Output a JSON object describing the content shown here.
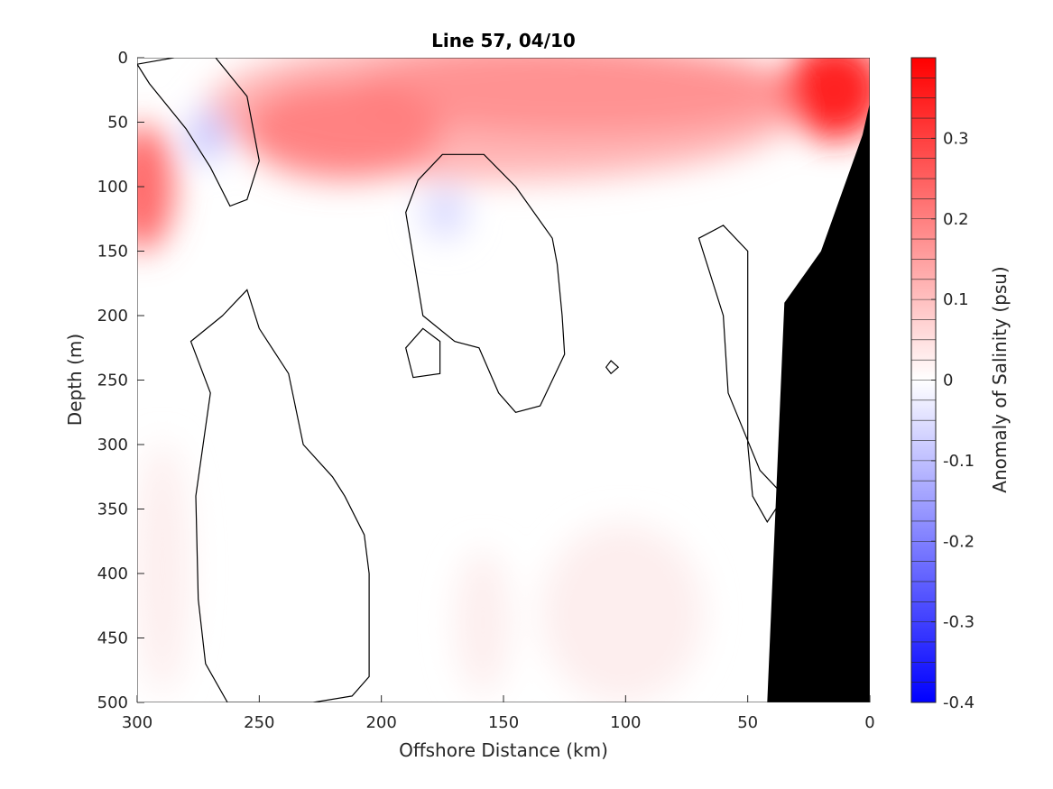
{
  "chart_data": {
    "type": "heatmap",
    "title": "Line 57, 04/10",
    "xlabel": "Offshore Distance (km)",
    "ylabel": "Depth (m)",
    "xlim": [
      300,
      0
    ],
    "ylim": [
      500,
      0
    ],
    "x_reversed": true,
    "y_reversed": true,
    "x_ticks": [
      "300",
      "250",
      "200",
      "150",
      "100",
      "50",
      "0"
    ],
    "y_ticks": [
      "0",
      "50",
      "100",
      "150",
      "200",
      "250",
      "300",
      "350",
      "400",
      "450",
      "500"
    ],
    "colorbar": {
      "label": "Anomaly of Salinity (psu)",
      "range": [
        -0.4,
        0.4
      ],
      "tick_values": [
        -0.4,
        -0.3,
        -0.2,
        -0.1,
        0,
        0.1,
        0.2,
        0.3
      ],
      "tick_labels": [
        "-0.4",
        "-0.3",
        "-0.2",
        "-0.1",
        "0",
        "0.1",
        "0.2",
        "0.3"
      ],
      "negative_color": "#0000ff",
      "positive_color": "#ff0000",
      "levels": 32
    },
    "features": [
      {
        "name": "salinity maximum near coast",
        "x": 12,
        "y": 15,
        "value": 0.38
      },
      {
        "name": "subsurface maximum offshore",
        "x": 298,
        "y": 100,
        "value": 0.3
      },
      {
        "name": "core near 215 km",
        "x": 215,
        "y": 60,
        "value": 0.22
      },
      {
        "name": "weak negative anomaly",
        "x": 270,
        "y": 55,
        "value": -0.06
      },
      {
        "name": "weak negative anomaly",
        "x": 175,
        "y": 120,
        "value": -0.03
      }
    ],
    "zero_contours": [
      [
        [
          270,
          -5
        ],
        [
          255,
          30
        ],
        [
          250,
          80
        ],
        [
          255,
          110
        ],
        [
          262,
          115
        ],
        [
          270,
          85
        ],
        [
          280,
          55
        ],
        [
          295,
          20
        ],
        [
          300,
          5
        ]
      ],
      [
        [
          185,
          95
        ],
        [
          175,
          75
        ],
        [
          158,
          75
        ],
        [
          145,
          100
        ],
        [
          130,
          140
        ],
        [
          128,
          160
        ],
        [
          126,
          200
        ],
        [
          125,
          230
        ],
        [
          135,
          270
        ],
        [
          145,
          275
        ],
        [
          152,
          260
        ],
        [
          160,
          225
        ],
        [
          170,
          220
        ],
        [
          183,
          200
        ],
        [
          190,
          120
        ]
      ],
      [
        [
          265,
          200
        ],
        [
          255,
          180
        ],
        [
          250,
          210
        ],
        [
          238,
          245
        ],
        [
          232,
          300
        ],
        [
          220,
          325
        ],
        [
          215,
          340
        ],
        [
          207,
          370
        ],
        [
          205,
          400
        ],
        [
          205,
          480
        ],
        [
          212,
          495
        ],
        [
          228,
          500
        ],
        [
          263,
          500
        ],
        [
          272,
          470
        ],
        [
          275,
          420
        ],
        [
          276,
          340
        ],
        [
          270,
          260
        ],
        [
          278,
          220
        ]
      ],
      [
        [
          70,
          140
        ],
        [
          60,
          130
        ],
        [
          50,
          150
        ],
        [
          50,
          300
        ],
        [
          48,
          340
        ],
        [
          42,
          360
        ],
        [
          35,
          340
        ],
        [
          45,
          320
        ],
        [
          58,
          260
        ],
        [
          60,
          200
        ]
      ],
      [
        [
          183,
          210
        ],
        [
          176,
          220
        ],
        [
          176,
          245
        ],
        [
          187,
          248
        ],
        [
          190,
          225
        ]
      ],
      [
        [
          106,
          235
        ],
        [
          103,
          240
        ],
        [
          106,
          245
        ],
        [
          108,
          240
        ]
      ]
    ],
    "bathymetry_mask": [
      [
        0,
        35
      ],
      [
        3,
        60
      ],
      [
        20,
        150
      ],
      [
        35,
        190
      ],
      [
        42,
        500
      ],
      [
        0,
        500
      ]
    ]
  }
}
